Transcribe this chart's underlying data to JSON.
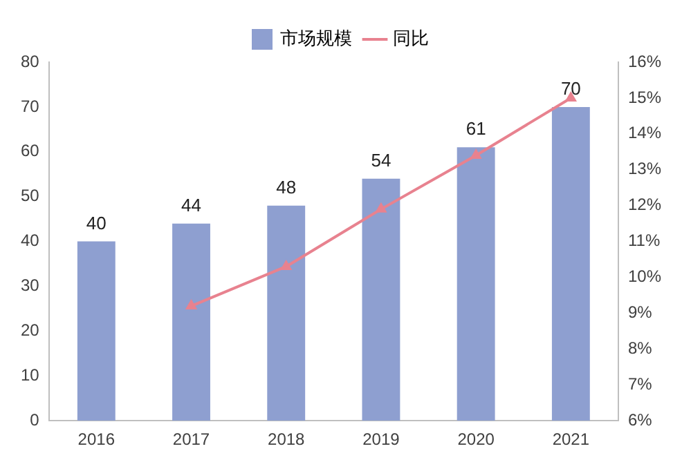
{
  "chart_data": {
    "type": "bar",
    "categories": [
      "2016",
      "2017",
      "2018",
      "2019",
      "2020",
      "2021"
    ],
    "series": [
      {
        "name": "市场规模",
        "color": "#8e9fd0",
        "values": [
          40,
          44,
          48,
          54,
          61,
          70
        ],
        "value_labels": [
          "40",
          "44",
          "48",
          "54",
          "61",
          "70"
        ]
      },
      {
        "name": "同比",
        "type": "line",
        "axis": "y2",
        "color": "#e8828f",
        "values": [
          null,
          9.2,
          10.3,
          11.9,
          13.4,
          15.0
        ],
        "marker": "triangle"
      }
    ],
    "ylim": [
      0,
      80
    ],
    "yticks": [
      0,
      10,
      20,
      30,
      40,
      50,
      60,
      70,
      80
    ],
    "y2lim": [
      6,
      16
    ],
    "y2ticks": [
      {
        "value": 6,
        "label": "6%"
      },
      {
        "value": 7,
        "label": "7%"
      },
      {
        "value": 8,
        "label": "8%"
      },
      {
        "value": 9,
        "label": "9%"
      },
      {
        "value": 10,
        "label": "10%"
      },
      {
        "value": 11,
        "label": "11%"
      },
      {
        "value": 12,
        "label": "12%"
      },
      {
        "value": 13,
        "label": "13%"
      },
      {
        "value": 14,
        "label": "14%"
      },
      {
        "value": 15,
        "label": "15%"
      },
      {
        "value": 16,
        "label": "16%"
      }
    ],
    "grid": false,
    "legend": "top"
  }
}
